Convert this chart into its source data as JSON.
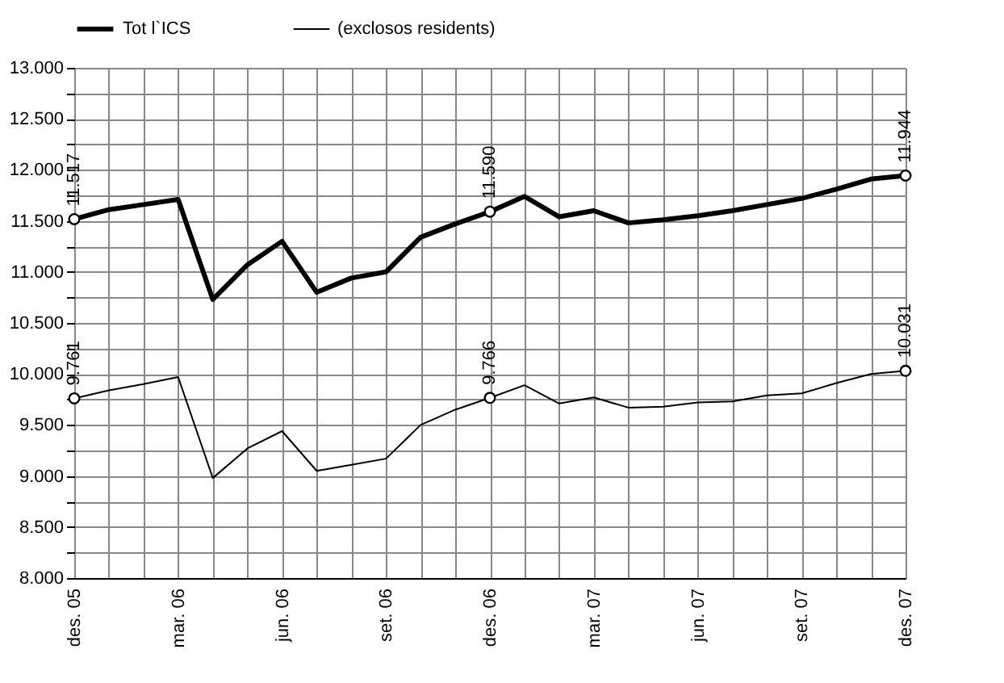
{
  "chart_data": {
    "type": "line",
    "categories": [
      "des. 05",
      null,
      null,
      "mar. 06",
      null,
      null,
      "jun. 06",
      null,
      null,
      "set. 06",
      null,
      null,
      "des. 06",
      null,
      null,
      "mar. 07",
      null,
      null,
      "jun. 07",
      null,
      null,
      "set. 07",
      null,
      null,
      "des. 07"
    ],
    "series": [
      {
        "name": "Tot l`ICS",
        "color": "#000000",
        "values": [
          11517,
          11610,
          11660,
          11710,
          10730,
          11070,
          11300,
          10800,
          10940,
          11000,
          11340,
          11470,
          11590,
          11740,
          11540,
          11600,
          11480,
          11510,
          11550,
          11600,
          11660,
          11720,
          11810,
          11910,
          11944
        ],
        "value_labels": [
          "11.517",
          null,
          null,
          null,
          null,
          null,
          null,
          null,
          null,
          null,
          null,
          null,
          "11.590",
          null,
          null,
          null,
          null,
          null,
          null,
          null,
          null,
          null,
          null,
          null,
          "11.944"
        ]
      },
      {
        "name": "(exclosos residents)",
        "color": "#000000",
        "values": [
          9761,
          9840,
          9900,
          9970,
          8980,
          9270,
          9440,
          9050,
          9110,
          9170,
          9500,
          9650,
          9766,
          9890,
          9710,
          9770,
          9670,
          9680,
          9720,
          9730,
          9790,
          9810,
          9910,
          10000,
          10031
        ],
        "value_labels": [
          "9.761",
          null,
          null,
          null,
          null,
          null,
          null,
          null,
          null,
          null,
          null,
          null,
          "9.766",
          null,
          null,
          null,
          null,
          null,
          null,
          null,
          null,
          null,
          null,
          null,
          "10.031"
        ]
      }
    ],
    "ylim": [
      8000,
      13000
    ],
    "yticks": [
      {
        "value": 8000,
        "label": "8.000"
      },
      {
        "value": 8250,
        "label": null
      },
      {
        "value": 8500,
        "label": "8.500"
      },
      {
        "value": 8750,
        "label": null
      },
      {
        "value": 9000,
        "label": "9.000"
      },
      {
        "value": 9250,
        "label": null
      },
      {
        "value": 9500,
        "label": "9.500"
      },
      {
        "value": 9750,
        "label": null
      },
      {
        "value": 10000,
        "label": "10.000"
      },
      {
        "value": 10250,
        "label": null
      },
      {
        "value": 10500,
        "label": "10.500"
      },
      {
        "value": 10750,
        "label": null
      },
      {
        "value": 11000,
        "label": "11.000"
      },
      {
        "value": 11250,
        "label": null
      },
      {
        "value": 11500,
        "label": "11.500"
      },
      {
        "value": 11750,
        "label": null
      },
      {
        "value": 12000,
        "label": "12.000"
      },
      {
        "value": 12250,
        "label": null
      },
      {
        "value": 12500,
        "label": "12.500"
      },
      {
        "value": 12750,
        "label": null
      },
      {
        "value": 13000,
        "label": "13.000"
      }
    ],
    "grid": true,
    "legend": "top",
    "line_style": "solid"
  }
}
